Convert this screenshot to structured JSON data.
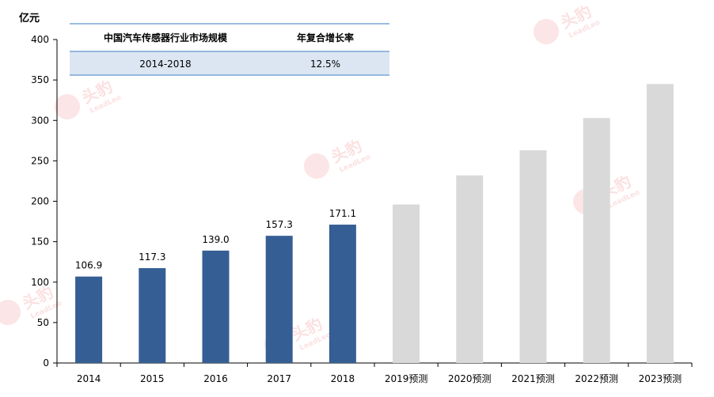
{
  "chart_data": {
    "type": "bar",
    "ylabel": "亿元",
    "ylim": [
      0,
      400
    ],
    "yticks": [
      0,
      50,
      100,
      150,
      200,
      250,
      300,
      350,
      400
    ],
    "categories": [
      "2014",
      "2015",
      "2016",
      "2017",
      "2018",
      "2019预测",
      "2020预测",
      "2021预测",
      "2022预测",
      "2023预测"
    ],
    "values": [
      106.9,
      117.3,
      139.0,
      157.3,
      171.1,
      196.0,
      232.0,
      263.0,
      303.0,
      345.0
    ],
    "data_labels": [
      "106.9",
      "117.3",
      "139.0",
      "157.3",
      "171.1",
      "",
      "",
      "",
      "",
      ""
    ],
    "actual_color": "#355f94",
    "forecast_color": "#d9d9d9",
    "grid": false,
    "table": {
      "headers": [
        "中国汽车传感器行业市场规模",
        "年复合增长率"
      ],
      "row": [
        "2014-2018",
        "12.5%"
      ],
      "header_bg": "#ffffff",
      "row_bg": "#dce6f2",
      "rule_color": "#7aa6d6"
    }
  },
  "watermark": {
    "text": "头豹",
    "subtext": "LeadLeo"
  }
}
